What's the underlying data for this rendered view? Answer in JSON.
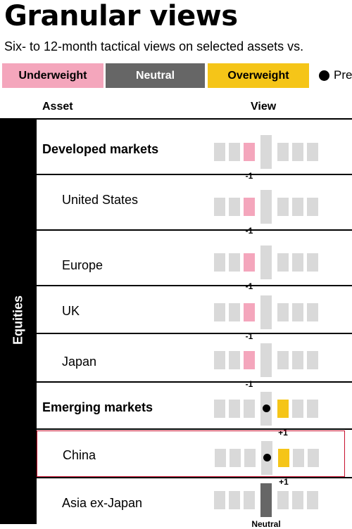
{
  "title": "Granular views",
  "subtitle": "Six- to 12-month tactical views on selected assets vs.",
  "legend": {
    "underweight": "Underweight",
    "neutral": "Neutral",
    "overweight": "Overweight",
    "previous": "Pre"
  },
  "columns": {
    "asset": "Asset",
    "view": "View"
  },
  "colors": {
    "underweight": "#f4a6bc",
    "neutral": "#666666",
    "overweight": "#f5c518",
    "empty_cell": "#d9d9d9",
    "highlight_border": "#c8102e"
  },
  "chart_data": {
    "type": "table",
    "scale": {
      "min": -3,
      "max": 3
    },
    "group": "Equities",
    "rows": [
      {
        "asset": "Developed markets",
        "kind": "region",
        "view": -1,
        "label": "-1",
        "previous": null,
        "highlight": false
      },
      {
        "asset": "United States",
        "kind": "country",
        "view": -1,
        "label": "-1",
        "previous": null,
        "highlight": false
      },
      {
        "asset": "Europe",
        "kind": "country",
        "view": -1,
        "label": "-1",
        "previous": null,
        "highlight": false
      },
      {
        "asset": "UK",
        "kind": "country",
        "view": -1,
        "label": "-1",
        "previous": null,
        "highlight": false
      },
      {
        "asset": "Japan",
        "kind": "country",
        "view": -1,
        "label": "-1",
        "previous": null,
        "highlight": false
      },
      {
        "asset": "Emerging markets",
        "kind": "region",
        "view": 1,
        "label": "+1",
        "previous": 0,
        "highlight": false
      },
      {
        "asset": "China",
        "kind": "country",
        "view": 1,
        "label": "+1",
        "previous": 0,
        "highlight": true
      },
      {
        "asset": "Asia ex-Japan",
        "kind": "country",
        "view": 0,
        "label": "Neutral",
        "previous": null,
        "highlight": false
      }
    ]
  }
}
